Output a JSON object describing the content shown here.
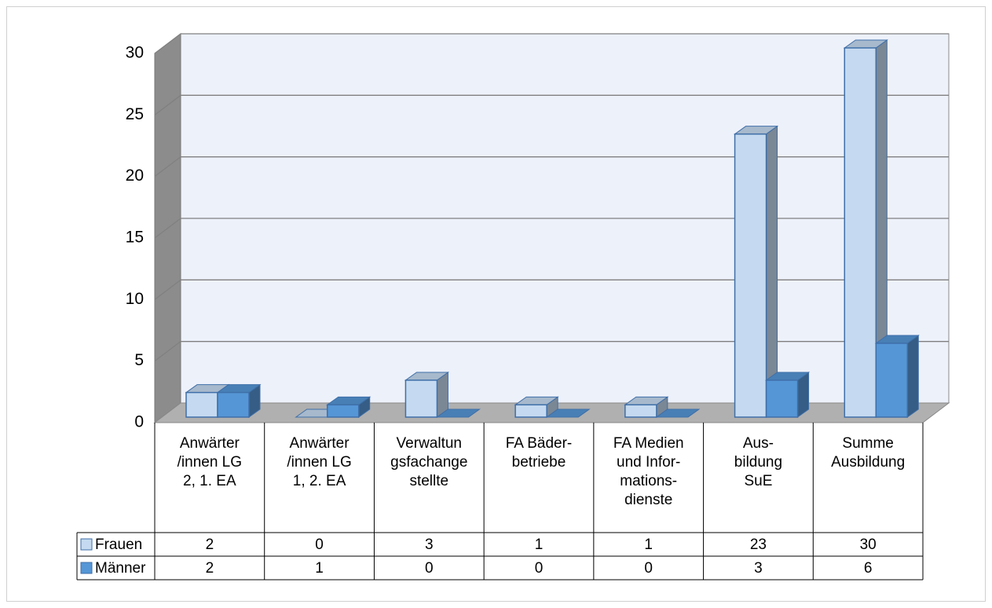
{
  "chart_data": {
    "type": "bar3d",
    "categories": [
      [
        "Anwärter",
        "/innen LG",
        "2, 1. EA"
      ],
      [
        "Anwärter",
        "/innen LG",
        "1, 2. EA"
      ],
      [
        "Verwaltun",
        "gsfachange",
        "stellte"
      ],
      [
        "FA Bäder-",
        "betriebe"
      ],
      [
        "FA Medien",
        "und Infor-",
        "mations-",
        "dienste"
      ],
      [
        "Aus-",
        "bildung",
        "SuE"
      ],
      [
        "Summe",
        "Ausbildung"
      ]
    ],
    "series": [
      {
        "name": "Frauen",
        "color": "#c5daf0",
        "values": [
          2,
          0,
          3,
          1,
          1,
          23,
          30
        ]
      },
      {
        "name": "Männer",
        "color": "#5596d6",
        "values": [
          2,
          1,
          0,
          0,
          0,
          3,
          6
        ]
      }
    ],
    "ylim": [
      0,
      30
    ],
    "yticks": [
      0,
      5,
      10,
      15,
      20,
      25,
      30
    ],
    "grid": true,
    "data_table": true
  }
}
